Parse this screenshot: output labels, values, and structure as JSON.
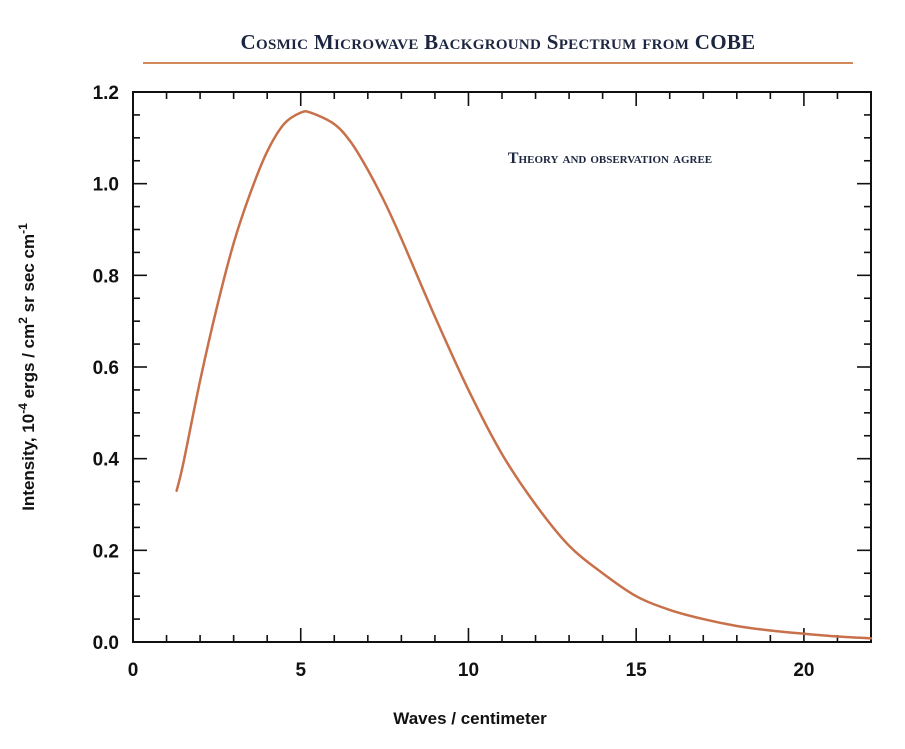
{
  "chart_data": {
    "type": "line",
    "title": "Cosmic Microwave Background Spectrum from COBE",
    "annotation": "Theory and observation agree",
    "xlabel": "Waves / centimeter",
    "ylabel_parts": {
      "prefix": "Intensity, 10",
      "exp1": "-4",
      "mid": " ergs / cm",
      "exp2": "2",
      "mid2": " sr sec cm",
      "exp3": "-1"
    },
    "xlim": [
      0,
      22
    ],
    "ylim": [
      0,
      1.2
    ],
    "xticks": [
      0,
      5,
      10,
      15,
      20
    ],
    "xtick_labels": [
      "0",
      "5",
      "10",
      "15",
      "20"
    ],
    "yticks": [
      0,
      0.2,
      0.4,
      0.6,
      0.8,
      1.0,
      1.2
    ],
    "ytick_labels": [
      "0.0",
      "0.2",
      "0.4",
      "0.6",
      "0.8",
      "1.0",
      "1.2"
    ],
    "grid": false,
    "series": [
      {
        "color": "#c8704a",
        "x": [
          1.3,
          1.5,
          2,
          2.5,
          3,
          3.5,
          4,
          4.5,
          5,
          5.3,
          6,
          6.5,
          7,
          7.5,
          8,
          9,
          10,
          11,
          12,
          13,
          14,
          15,
          16,
          17,
          18,
          19,
          20,
          21,
          22
        ],
        "y": [
          0.33,
          0.39,
          0.57,
          0.73,
          0.87,
          0.98,
          1.07,
          1.13,
          1.155,
          1.155,
          1.13,
          1.09,
          1.03,
          0.96,
          0.88,
          0.71,
          0.55,
          0.41,
          0.3,
          0.21,
          0.15,
          0.1,
          0.07,
          0.05,
          0.035,
          0.025,
          0.018,
          0.012,
          0.008
        ]
      }
    ]
  }
}
